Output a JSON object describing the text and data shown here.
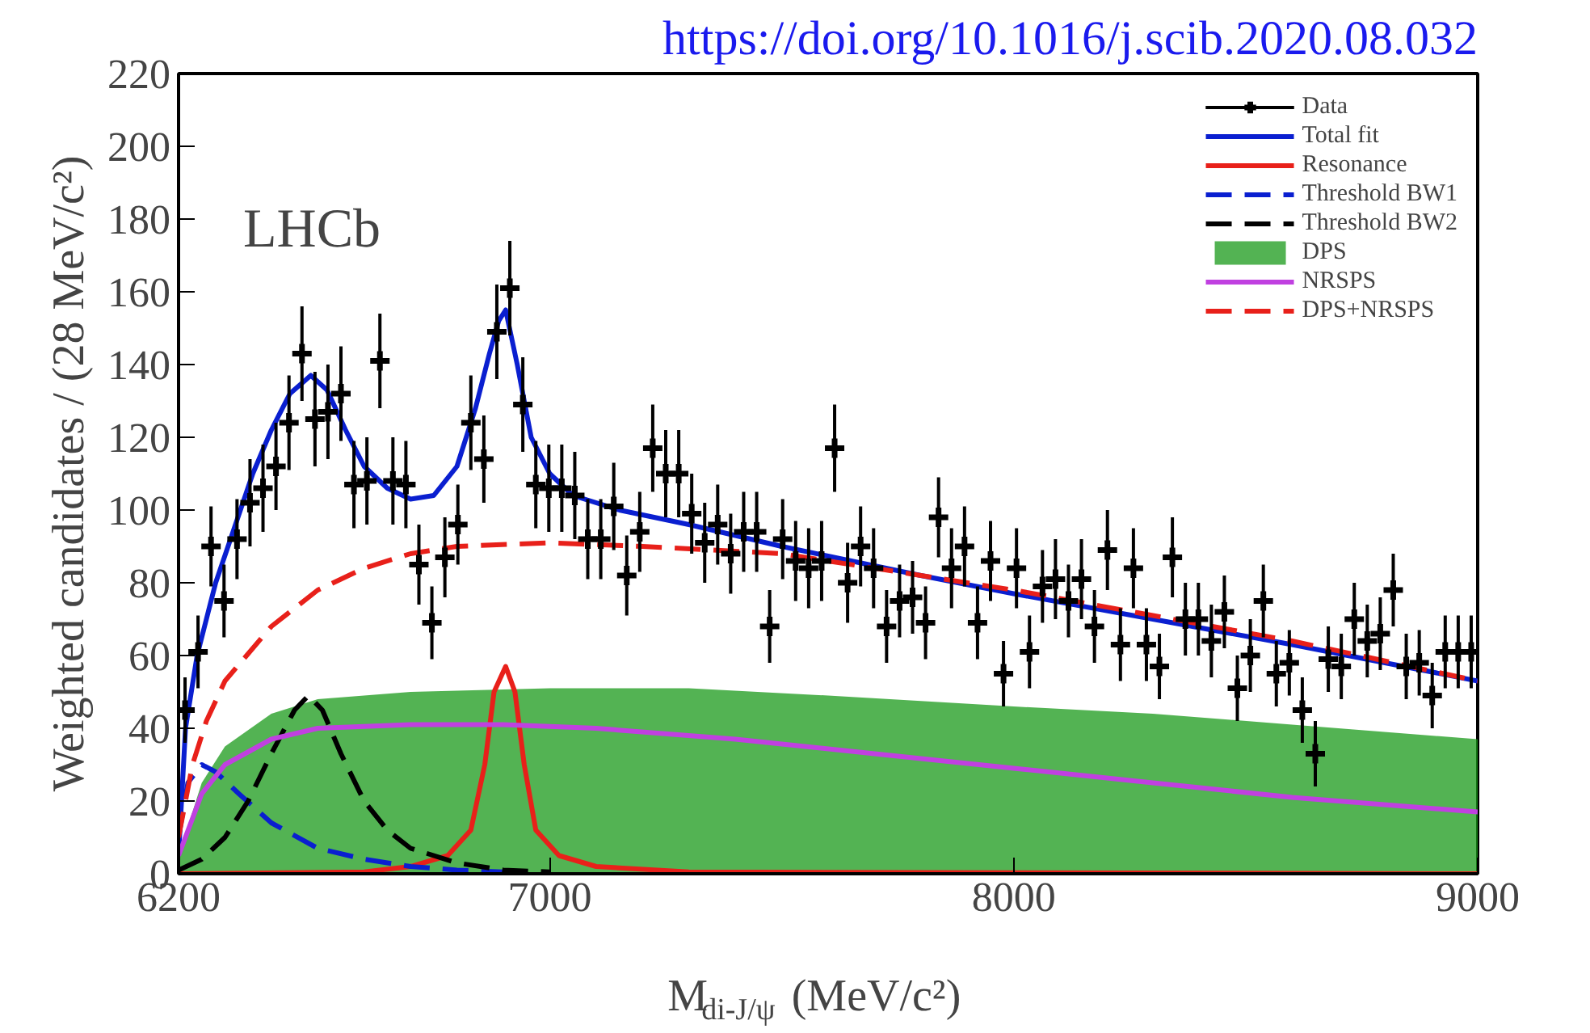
{
  "chart_data": {
    "type": "line",
    "title": "https://doi.org/10.1016/j.scib.2020.08.032",
    "xlabel": "M$_{di-J/ψ}$ (MeV/c²)",
    "ylabel": "Weighted candidates / (28 MeV/c²)",
    "annotations": [
      "LHCb"
    ],
    "xlim": [
      6200,
      9000
    ],
    "ylim": [
      0,
      220
    ],
    "xticks": [
      {
        "value": 6200,
        "label": "6200"
      },
      7000,
      8000,
      9000
    ],
    "yticks": [
      0,
      20,
      40,
      60,
      80,
      100,
      120,
      140,
      160,
      180,
      200,
      220
    ],
    "grid": false,
    "legend": "top right",
    "series": [
      {
        "name": "Data",
        "type": "scatter",
        "marker": "cross",
        "color": "#000000",
        "x": [
          6214,
          6242,
          6270,
          6298,
          6326,
          6354,
          6382,
          6410,
          6438,
          6466,
          6494,
          6522,
          6550,
          6578,
          6606,
          6634,
          6662,
          6690,
          6718,
          6746,
          6774,
          6802,
          6830,
          6858,
          6886,
          6914,
          6942,
          6970,
          6998,
          7026,
          7054,
          7082,
          7110,
          7138,
          7166,
          7194,
          7222,
          7250,
          7278,
          7306,
          7334,
          7362,
          7390,
          7418,
          7446,
          7474,
          7502,
          7530,
          7558,
          7586,
          7614,
          7642,
          7670,
          7698,
          7726,
          7754,
          7782,
          7810,
          7838,
          7866,
          7894,
          7922,
          7950,
          7978,
          8006,
          8034,
          8062,
          8090,
          8118,
          8146,
          8174,
          8202,
          8230,
          8258,
          8286,
          8314,
          8342,
          8370,
          8398,
          8426,
          8454,
          8482,
          8510,
          8538,
          8566,
          8594,
          8622,
          8650,
          8678,
          8706,
          8734,
          8762,
          8790,
          8818,
          8846,
          8874,
          8902,
          8930,
          8958,
          8986
        ],
        "values": [
          45,
          61,
          90,
          75,
          92,
          102,
          106,
          112,
          124,
          143,
          125,
          127,
          132,
          107,
          108,
          141,
          108,
          107,
          85,
          69,
          87,
          96,
          124,
          114,
          149,
          161,
          129,
          107,
          106,
          106,
          104,
          92,
          92,
          101,
          82,
          94,
          117,
          110,
          110,
          99,
          91,
          96,
          88,
          94,
          94,
          68,
          92,
          86,
          84,
          86,
          117,
          80,
          90,
          84,
          68,
          75,
          76,
          69,
          98,
          84,
          90,
          69,
          86,
          55,
          84,
          61,
          79,
          81,
          75,
          81,
          68,
          89,
          63,
          84,
          63,
          57,
          87,
          70,
          70,
          64,
          72,
          51,
          60,
          75,
          55,
          58,
          45,
          33,
          59,
          57,
          70,
          64,
          66,
          78,
          57,
          58,
          49,
          61,
          61,
          61
        ],
        "errors": [
          9,
          10,
          11,
          10,
          11,
          12,
          12,
          12,
          13,
          13,
          13,
          13,
          13,
          12,
          12,
          13,
          12,
          12,
          11,
          10,
          11,
          11,
          13,
          12,
          13,
          13,
          13,
          12,
          12,
          12,
          12,
          11,
          11,
          12,
          11,
          11,
          12,
          12,
          12,
          11,
          11,
          11,
          11,
          11,
          11,
          10,
          11,
          11,
          11,
          11,
          12,
          11,
          11,
          11,
          10,
          10,
          10,
          10,
          11,
          11,
          11,
          10,
          11,
          9,
          11,
          10,
          10,
          11,
          10,
          11,
          10,
          11,
          10,
          11,
          10,
          9,
          11,
          10,
          10,
          10,
          10,
          9,
          10,
          10,
          9,
          9,
          9,
          9,
          9,
          9,
          10,
          10,
          10,
          10,
          9,
          9,
          9,
          10,
          10,
          10
        ],
        "xerrors": [
          14,
          14,
          14,
          14,
          14,
          14,
          14,
          14,
          14,
          14,
          14,
          14,
          14,
          14,
          14,
          14,
          14,
          14,
          14,
          14,
          14,
          14,
          14,
          14,
          14,
          14,
          14,
          14,
          14,
          14,
          14,
          14,
          14,
          14,
          14,
          14,
          14,
          14,
          14,
          14,
          14,
          14,
          14,
          14,
          14,
          14,
          14,
          14,
          14,
          14,
          14,
          14,
          14,
          14,
          14,
          14,
          14,
          14,
          14,
          14,
          14,
          14,
          14,
          14,
          14,
          14,
          14,
          14,
          14,
          14,
          14,
          14,
          14,
          14,
          14,
          14,
          14,
          14,
          14,
          14,
          14,
          14,
          14,
          14,
          14,
          14,
          14,
          14,
          14,
          14,
          14,
          14,
          14,
          14,
          14,
          14,
          14,
          14,
          14,
          14
        ]
      },
      {
        "name": "Total fit",
        "line_style": "solid",
        "color": "#0a1fd0",
        "x": [
          6200,
          6215,
          6240,
          6280,
          6320,
          6360,
          6400,
          6440,
          6485,
          6520,
          6560,
          6600,
          6650,
          6700,
          6750,
          6800,
          6840,
          6870,
          6890,
          6905,
          6930,
          6960,
          7000,
          7050,
          7150,
          7300,
          7500,
          7800,
          8000,
          8300,
          8600,
          9000
        ],
        "values": [
          5,
          40,
          60,
          80,
          95,
          110,
          122,
          132,
          137,
          133,
          122,
          112,
          106,
          103,
          104,
          112,
          128,
          143,
          152,
          155,
          140,
          120,
          110,
          104,
          100,
          96,
          90,
          82,
          77,
          70,
          63,
          53
        ]
      },
      {
        "name": "Resonance",
        "line_style": "solid",
        "color": "#e8201a",
        "x": [
          6200,
          6600,
          6700,
          6780,
          6830,
          6860,
          6880,
          6905,
          6925,
          6945,
          6970,
          7020,
          7100,
          7300,
          9000
        ],
        "values": [
          0,
          0.5,
          2,
          5,
          12,
          30,
          50,
          57,
          50,
          30,
          12,
          5,
          2,
          0.5,
          0
        ]
      },
      {
        "name": "Threshold BW1",
        "line_style": "dashed",
        "color": "#0a1fd0",
        "x": [
          6200,
          6220,
          6250,
          6280,
          6330,
          6400,
          6500,
          6600,
          6700,
          6800,
          6900
        ],
        "values": [
          10,
          25,
          30,
          28,
          22,
          14,
          7,
          4,
          2,
          1,
          0.5
        ]
      },
      {
        "name": "Threshold BW2",
        "line_style": "dashed",
        "color": "#000000",
        "x": [
          6200,
          6250,
          6300,
          6350,
          6400,
          6450,
          6480,
          6510,
          6550,
          6600,
          6650,
          6700,
          6800,
          6900,
          7000
        ],
        "values": [
          1,
          4,
          10,
          20,
          33,
          45,
          49,
          45,
          33,
          20,
          12,
          7,
          3,
          1,
          0.5
        ]
      },
      {
        "name": "DPS",
        "type": "area",
        "color": "#1a9a1a",
        "x": [
          6200,
          6250,
          6300,
          6400,
          6500,
          6700,
          7000,
          7300,
          7600,
          8000,
          8300,
          8600,
          9000
        ],
        "values": [
          5,
          25,
          35,
          44,
          48,
          50,
          51,
          51,
          49,
          46,
          44,
          41,
          37
        ]
      },
      {
        "name": "NRSPS",
        "line_style": "solid",
        "color": "#c040e0",
        "x": [
          6200,
          6250,
          6300,
          6400,
          6500,
          6700,
          6900,
          7100,
          7400,
          7700,
          8000,
          8300,
          8600,
          9000
        ],
        "values": [
          5,
          22,
          30,
          37,
          40,
          41,
          41,
          40,
          37,
          33,
          29,
          25,
          21,
          17
        ]
      },
      {
        "name": "DPS+NRSPS",
        "line_style": "dashed",
        "color": "#e8201a",
        "x": [
          6200,
          6230,
          6260,
          6300,
          6400,
          6500,
          6600,
          6700,
          6800,
          7000,
          7200,
          7500,
          7800,
          8000,
          8300,
          8600,
          9000
        ],
        "values": [
          10,
          30,
          42,
          53,
          68,
          78,
          84,
          88,
          90,
          91,
          90,
          88,
          82,
          78,
          71,
          64,
          53
        ]
      }
    ]
  }
}
